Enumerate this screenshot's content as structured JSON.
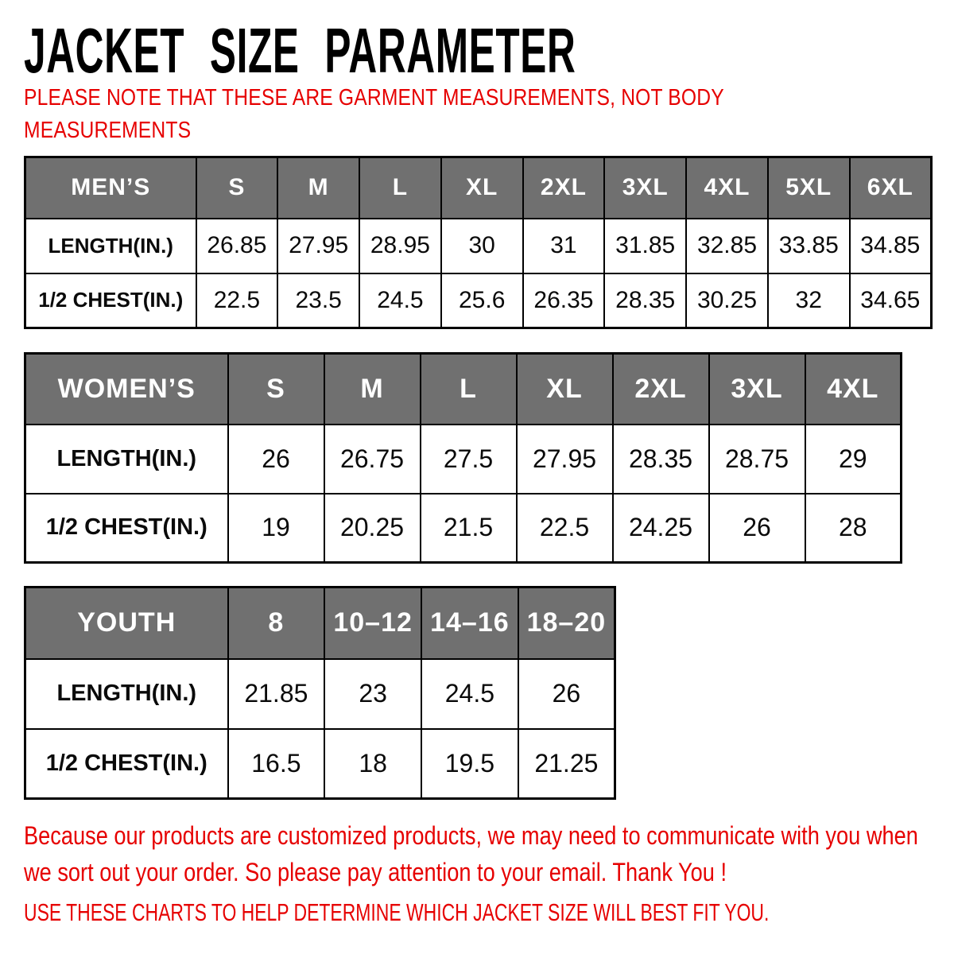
{
  "title": "JACKET SIZE PARAMETER",
  "note": "PLEASE NOTE THAT THESE ARE GARMENT MEASUREMENTS, NOT BODY MEASUREMENTS",
  "tables": [
    {
      "name": "mens",
      "header": [
        "MEN’S",
        "S",
        "M",
        "L",
        "XL",
        "2XL",
        "3XL",
        "4XL",
        "5XL",
        "6XL"
      ],
      "rows": [
        {
          "label": "LENGTH(IN.)",
          "values": [
            "26.85",
            "27.95",
            "28.95",
            "30",
            "31",
            "31.85",
            "32.85",
            "33.85",
            "34.85"
          ]
        },
        {
          "label": "1/2 CHEST(IN.)",
          "values": [
            "22.5",
            "23.5",
            "24.5",
            "25.6",
            "26.35",
            "28.35",
            "30.25",
            "32",
            "34.65"
          ]
        }
      ]
    },
    {
      "name": "womens",
      "header": [
        "WOMEN’S",
        "S",
        "M",
        "L",
        "XL",
        "2XL",
        "3XL",
        "4XL"
      ],
      "rows": [
        {
          "label": "LENGTH(IN.)",
          "values": [
            "26",
            "26.75",
            "27.5",
            "27.95",
            "28.35",
            "28.75",
            "29"
          ]
        },
        {
          "label": "1/2 CHEST(IN.)",
          "values": [
            "19",
            "20.25",
            "21.5",
            "22.5",
            "24.25",
            "26",
            "28"
          ]
        }
      ]
    },
    {
      "name": "youth",
      "header": [
        "YOUTH",
        "8",
        "10–12",
        "14–16",
        "18–20"
      ],
      "rows": [
        {
          "label": "LENGTH(IN.)",
          "values": [
            "21.85",
            "23",
            "24.5",
            "26"
          ]
        },
        {
          "label": "1/2 CHEST(IN.)",
          "values": [
            "16.5",
            "18",
            "19.5",
            "21.25"
          ]
        }
      ]
    }
  ],
  "footer": {
    "note": "Because our products are customized products, we may need to communicate with you when we sort out your order. So please pay attention to your email. Thank You !",
    "instruction": "USE THESE CHARTS TO HELP DETERMINE WHICH JACKET SIZE WILL BEST FIT YOU."
  },
  "colors": {
    "header_bg": "#707070",
    "header_text": "#ffffff",
    "accent_red": "#e60000",
    "border": "#000000"
  }
}
